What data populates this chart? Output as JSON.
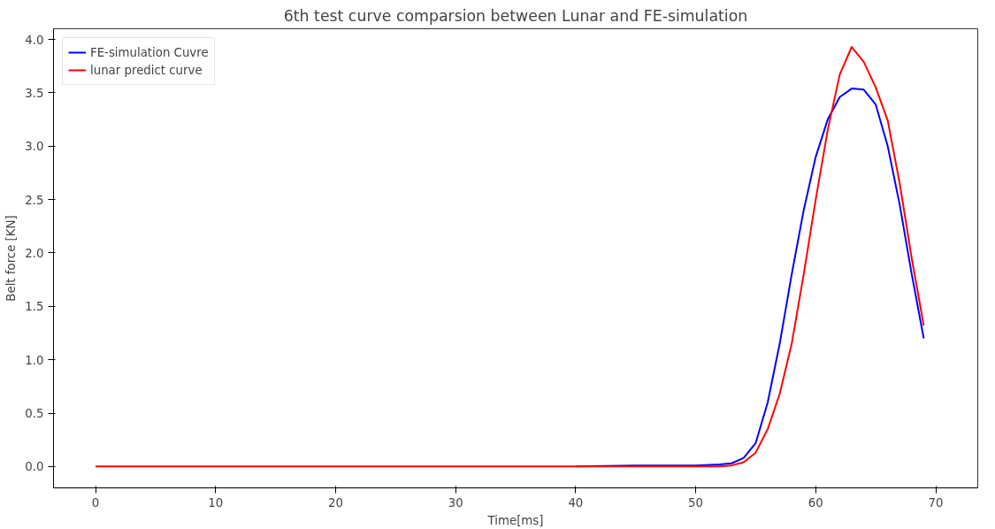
{
  "chart_data": {
    "type": "line",
    "title": "6th test curve comparsion between Lunar and FE-simulation",
    "xlabel": "Time[ms]",
    "ylabel": "Belt force [KN]",
    "xlim": [
      -3.5,
      73.5
    ],
    "ylim": [
      -0.2,
      4.1
    ],
    "xticks": [
      0,
      10,
      20,
      30,
      40,
      50,
      60,
      70
    ],
    "yticks": [
      {
        "value": 0,
        "label": "0.0"
      },
      {
        "value": 0.5,
        "label": "0.5"
      },
      {
        "value": 1,
        "label": "1.0"
      },
      {
        "value": 1.5,
        "label": "1.5"
      },
      {
        "value": 2,
        "label": "2.0"
      },
      {
        "value": 2.5,
        "label": "2.5"
      },
      {
        "value": 3,
        "label": "3.0"
      },
      {
        "value": 3.5,
        "label": "3.5"
      },
      {
        "value": 4,
        "label": "4.0"
      }
    ],
    "grid": false,
    "legend": "top left",
    "series": [
      {
        "name": "FE-simulation Cuvre",
        "color": "#0000ff",
        "x": [
          40,
          45,
          50,
          52,
          53,
          54,
          55,
          56,
          57,
          58,
          59,
          60,
          61,
          62,
          63,
          64,
          65,
          66,
          67,
          68,
          69
        ],
        "values": [
          0,
          0.01,
          0.01,
          0.02,
          0.03,
          0.08,
          0.22,
          0.6,
          1.15,
          1.8,
          2.4,
          2.9,
          3.25,
          3.46,
          3.54,
          3.53,
          3.39,
          3.0,
          2.45,
          1.8,
          1.2
        ]
      },
      {
        "name": "lunar predict curve",
        "color": "#ff0000",
        "x": [
          0,
          10,
          20,
          30,
          40,
          45,
          50,
          52,
          53,
          54,
          55,
          56,
          57,
          58,
          59,
          60,
          61,
          62,
          63,
          64,
          65,
          66,
          67,
          68,
          69
        ],
        "values": [
          0,
          0,
          0,
          0,
          0,
          0,
          0,
          0,
          0.01,
          0.04,
          0.13,
          0.35,
          0.68,
          1.15,
          1.8,
          2.5,
          3.15,
          3.67,
          3.93,
          3.79,
          3.55,
          3.24,
          2.65,
          1.95,
          1.32
        ]
      }
    ]
  }
}
